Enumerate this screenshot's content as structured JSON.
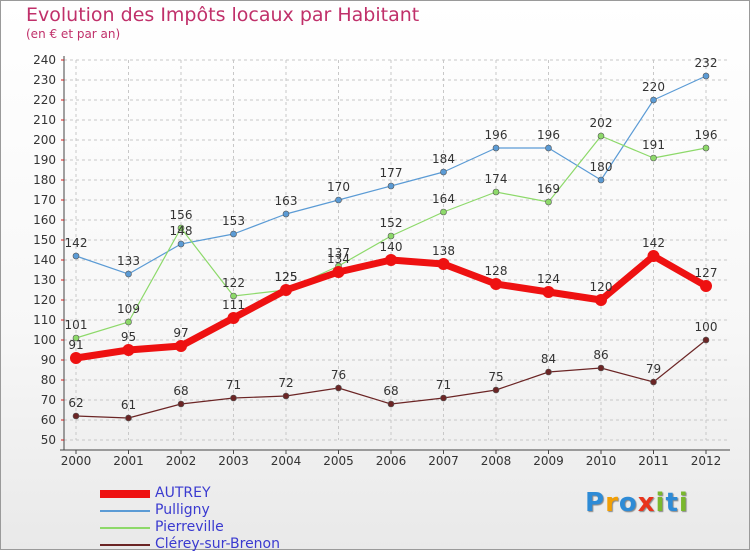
{
  "header": {
    "title": "Evolution des Impôts locaux par Habitant",
    "subtitle": "(en € et par an)"
  },
  "logo": {
    "text": "Proxiti",
    "letters": [
      {
        "ch": "P",
        "color": "#2e8bd6"
      },
      {
        "ch": "r",
        "color": "#f29f05"
      },
      {
        "ch": "o",
        "color": "#2e8bd6"
      },
      {
        "ch": "x",
        "color": "#e8341c"
      },
      {
        "ch": "i",
        "color": "#7ab82e"
      },
      {
        "ch": "t",
        "color": "#2e8bd6"
      },
      {
        "ch": "i",
        "color": "#7ab82e"
      }
    ]
  },
  "chart_data": {
    "type": "line",
    "title": "Evolution des Impôts locaux par Habitant",
    "subtitle": "(en € et par an)",
    "xlabel": "",
    "ylabel": "",
    "x": [
      "2000",
      "2001",
      "2002",
      "2003",
      "2004",
      "2005",
      "2006",
      "2007",
      "2008",
      "2009",
      "2010",
      "2011",
      "2012"
    ],
    "ylim": [
      50,
      240
    ],
    "y_ticks": [
      50,
      60,
      70,
      80,
      90,
      100,
      110,
      120,
      130,
      140,
      150,
      160,
      170,
      180,
      190,
      200,
      210,
      220,
      230,
      240
    ],
    "grid": true,
    "legend_position": "bottom-left",
    "series": [
      {
        "name": "Pulligny",
        "color": "#5b9bd5",
        "width": 1.2,
        "values": [
          142,
          133,
          148,
          153,
          163,
          170,
          177,
          184,
          196,
          196,
          180,
          220,
          232
        ]
      },
      {
        "name": "Pierreville",
        "color": "#8dd96a",
        "width": 1.2,
        "values": [
          101,
          109,
          156,
          122,
          125,
          137,
          152,
          164,
          174,
          169,
          202,
          191,
          196
        ]
      },
      {
        "name": "Clérey-sur-Brenon",
        "color": "#6b2525",
        "width": 1.2,
        "values": [
          62,
          61,
          68,
          71,
          72,
          76,
          68,
          71,
          75,
          84,
          86,
          79,
          100
        ]
      },
      {
        "name": "AUTREY",
        "color": "#ee1111",
        "width": 7,
        "values": [
          91,
          95,
          97,
          111,
          125,
          134,
          140,
          138,
          128,
          124,
          120,
          142,
          127
        ]
      }
    ],
    "legend_order": [
      "AUTREY",
      "Pulligny",
      "Pierreville",
      "Clérey-sur-Brenon"
    ]
  }
}
